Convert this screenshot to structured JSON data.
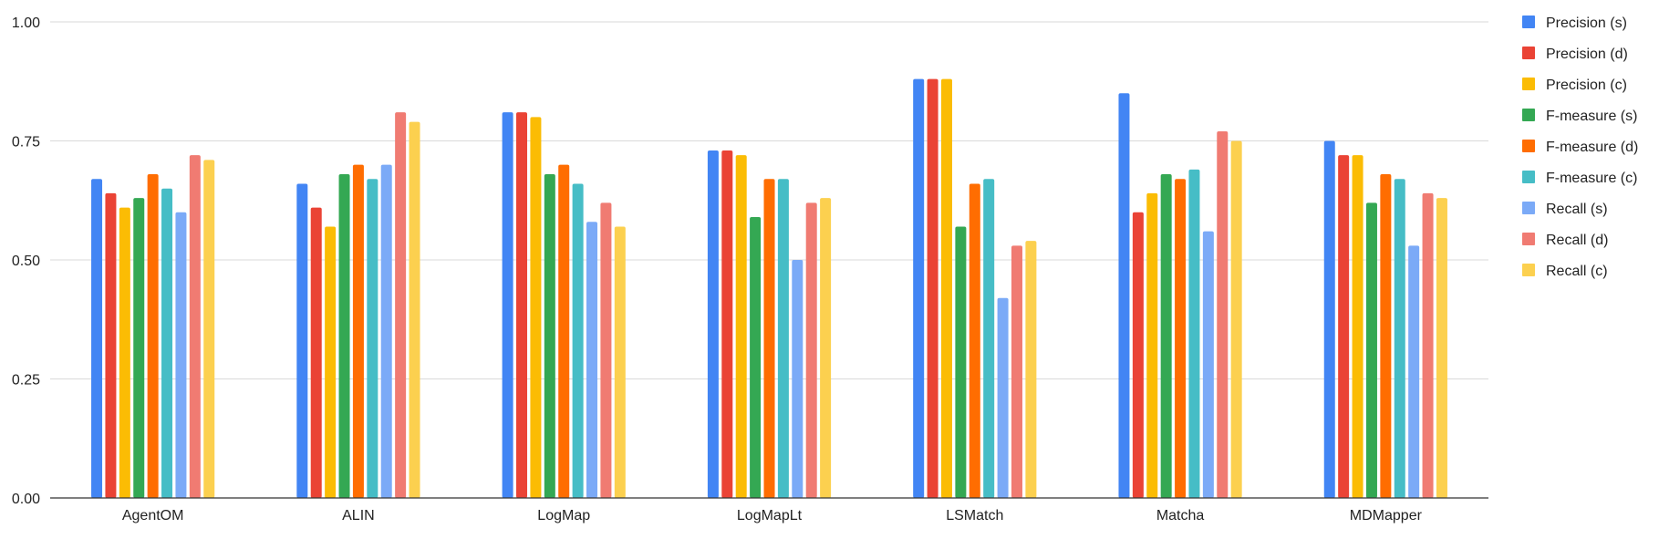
{
  "chart_data": {
    "type": "bar",
    "categories": [
      "AgentOM",
      "ALIN",
      "LogMap",
      "LogMapLt",
      "LSMatch",
      "Matcha",
      "MDMapper"
    ],
    "ylim": [
      0,
      1
    ],
    "yticks": [
      "0.00",
      "0.25",
      "0.50",
      "0.75",
      "1.00"
    ],
    "grid": true,
    "legend_position": "right",
    "series": [
      {
        "name": "Precision (s)",
        "color": "#4285F4",
        "values": [
          0.67,
          0.66,
          0.81,
          0.73,
          0.88,
          0.85,
          0.75
        ]
      },
      {
        "name": "Precision (d)",
        "color": "#EA4335",
        "values": [
          0.64,
          0.61,
          0.81,
          0.73,
          0.88,
          0.6,
          0.72
        ]
      },
      {
        "name": "Precision (c)",
        "color": "#FBBC04",
        "values": [
          0.61,
          0.57,
          0.8,
          0.72,
          0.88,
          0.64,
          0.72
        ]
      },
      {
        "name": "F-measure (s)",
        "color": "#34A853",
        "values": [
          0.63,
          0.68,
          0.68,
          0.59,
          0.57,
          0.68,
          0.62
        ]
      },
      {
        "name": "F-measure (d)",
        "color": "#FF6D01",
        "values": [
          0.68,
          0.7,
          0.7,
          0.67,
          0.66,
          0.67,
          0.68
        ]
      },
      {
        "name": "F-measure (c)",
        "color": "#46BDC6",
        "values": [
          0.65,
          0.67,
          0.66,
          0.67,
          0.67,
          0.69,
          0.67
        ]
      },
      {
        "name": "Recall (s)",
        "color": "#7BAAF7",
        "values": [
          0.6,
          0.7,
          0.58,
          0.5,
          0.42,
          0.56,
          0.53
        ]
      },
      {
        "name": "Recall (d)",
        "color": "#F07B72",
        "values": [
          0.72,
          0.81,
          0.62,
          0.62,
          0.53,
          0.77,
          0.64
        ]
      },
      {
        "name": "Recall (c)",
        "color": "#FCD04F",
        "values": [
          0.71,
          0.79,
          0.57,
          0.63,
          0.54,
          0.75,
          0.63
        ]
      }
    ]
  }
}
